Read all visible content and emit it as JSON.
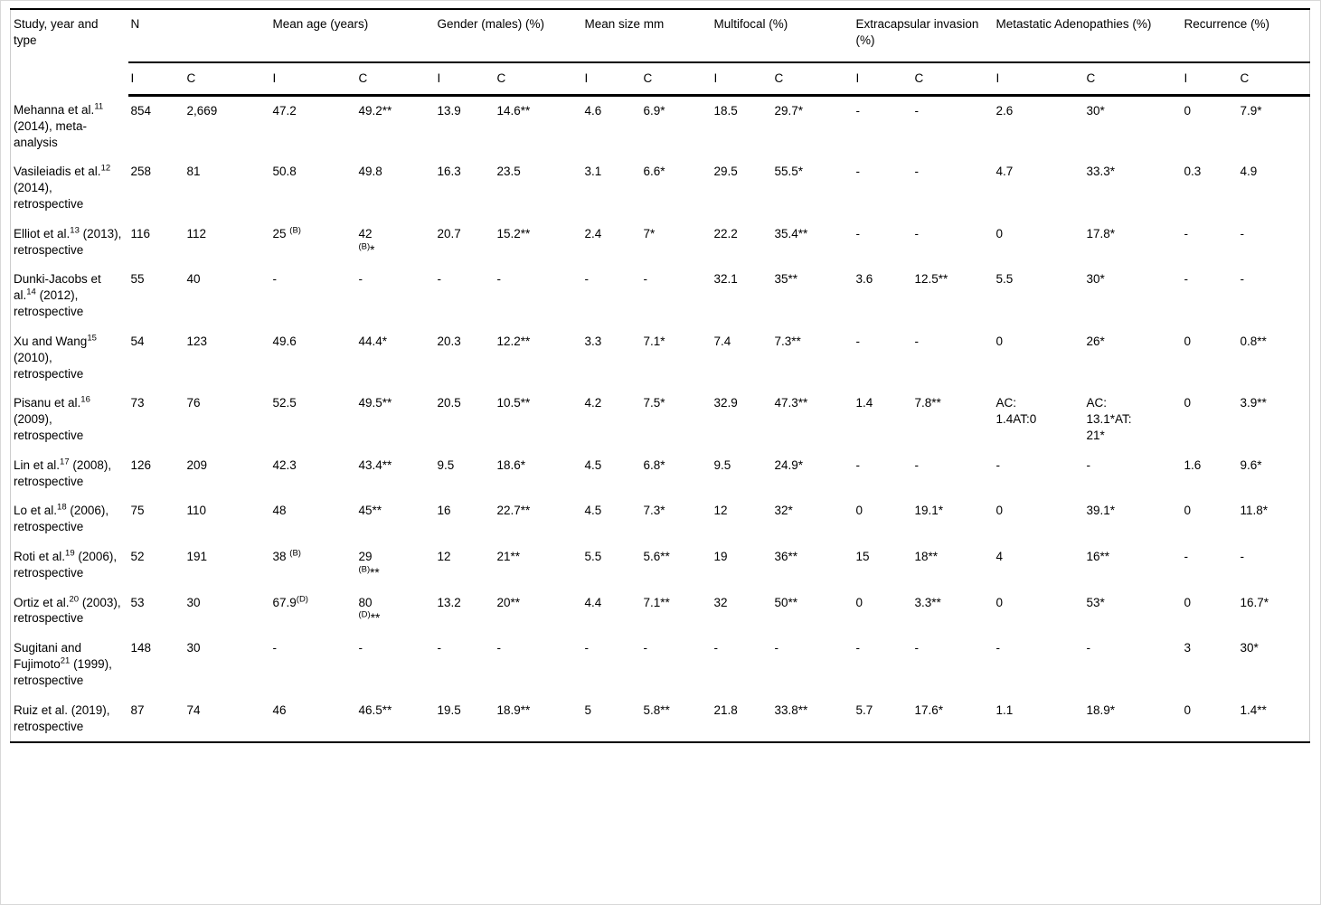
{
  "table": {
    "header": {
      "study": "Study, year and type",
      "groups": [
        "N",
        "Mean age (years)",
        "Gender (males) (%)",
        "Mean size mm",
        "Multifocal (%)",
        "Extracapsular invasion (%)",
        "Metastatic Adenopathies (%)",
        "Recurrence (%)"
      ],
      "sub": [
        "I",
        "C"
      ]
    },
    "rows": [
      {
        "study": "Mehanna et al.^11^ (2014), meta-analysis",
        "cells": [
          "854",
          "2,669",
          "47.2",
          "49.2**",
          "13.9",
          "14.6**",
          "4.6",
          "6.9*",
          "18.5",
          "29.7*",
          "-",
          "-",
          "2.6",
          "30*",
          "0",
          "7.9*"
        ]
      },
      {
        "study": "Vasileiadis et al.^12^ (2014), retrospective",
        "cells": [
          "258",
          "81",
          "50.8",
          "49.8",
          "16.3",
          "23.5",
          "3.1",
          "6.6*",
          "29.5",
          "55.5*",
          "-",
          "-",
          "4.7",
          "33.3*",
          "0.3",
          "4.9"
        ]
      },
      {
        "study": "Elliot et al.^13^ (2013), retrospective",
        "cells": [
          "116",
          "112",
          "25 ^(B)^",
          "42|^(B)^*",
          "20.7",
          "15.2**",
          "2.4",
          "7*",
          "22.2",
          "35.4**",
          "-",
          "-",
          "0",
          "17.8*",
          "-",
          "-"
        ]
      },
      {
        "study": "Dunki-Jacobs et al.^14^ (2012), retrospective",
        "cells": [
          "55",
          "40",
          "-",
          "-",
          "-",
          "-",
          "-",
          "-",
          "32.1",
          "35**",
          "3.6",
          "12.5**",
          "5.5",
          "30*",
          "-",
          "-"
        ]
      },
      {
        "study": "Xu and Wang^15^ (2010), retrospective",
        "cells": [
          "54",
          "123",
          "49.6",
          "44.4*",
          "20.3",
          "12.2**",
          "3.3",
          "7.1*",
          "7.4",
          "7.3**",
          "-",
          "-",
          "0",
          "26*",
          "0",
          "0.8**"
        ]
      },
      {
        "study": "Pisanu et al.^16^ (2009), retrospective",
        "cells": [
          "73",
          "76",
          "52.5",
          "49.5**",
          "20.5",
          "10.5**",
          "4.2",
          "7.5*",
          "32.9",
          "47.3**",
          "1.4",
          "7.8**",
          "AC:|1.4AT:0",
          "AC:|13.1*AT:|21*",
          "0",
          "3.9**"
        ]
      },
      {
        "study": "Lin et al.^17^ (2008), retrospective",
        "cells": [
          "126",
          "209",
          "42.3",
          "43.4**",
          "9.5",
          "18.6*",
          "4.5",
          "6.8*",
          "9.5",
          "24.9*",
          "-",
          "-",
          "-",
          "-",
          "1.6",
          "9.6*"
        ]
      },
      {
        "study": "Lo et al.^18^ (2006), retrospective",
        "cells": [
          "75",
          "110",
          "48",
          "45**",
          "16",
          "22.7**",
          "4.5",
          "7.3*",
          "12",
          "32*",
          "0",
          "19.1*",
          "0",
          "39.1*",
          "0",
          "11.8*"
        ]
      },
      {
        "study": "Roti et al.^19^ (2006), retrospective",
        "cells": [
          "52",
          "191",
          "38 ^(B)^",
          "29|^(B)^**",
          "12",
          "21**",
          "5.5",
          "5.6**",
          "19",
          "36**",
          "15",
          "18**",
          "4",
          "16**",
          "-",
          "-"
        ]
      },
      {
        "study": "Ortiz et al.^20^ (2003), retrospective",
        "cells": [
          "53",
          "30",
          "67.9^(D)^",
          "80|^(D)^**",
          "13.2",
          "20**",
          "4.4",
          "7.1**",
          "32",
          "50**",
          "0",
          "3.3**",
          "0",
          "53*",
          "0",
          "16.7*"
        ]
      },
      {
        "study": "Sugitani and Fujimoto^21^ (1999), retrospective",
        "cells": [
          "148",
          "30",
          "-",
          "-",
          "-",
          "-",
          "-",
          "-",
          "-",
          "-",
          "-",
          "-",
          "-",
          "-",
          "3",
          "30*"
        ]
      },
      {
        "study": "Ruiz et al. (2019), retrospective",
        "cells": [
          "87",
          "74",
          "46",
          "46.5**",
          "19.5",
          "18.9**",
          "5",
          "5.8**",
          "21.8",
          "33.8**",
          "5.7",
          "17.6*",
          "1.1",
          "18.9*",
          "0",
          "1.4**"
        ]
      }
    ]
  }
}
